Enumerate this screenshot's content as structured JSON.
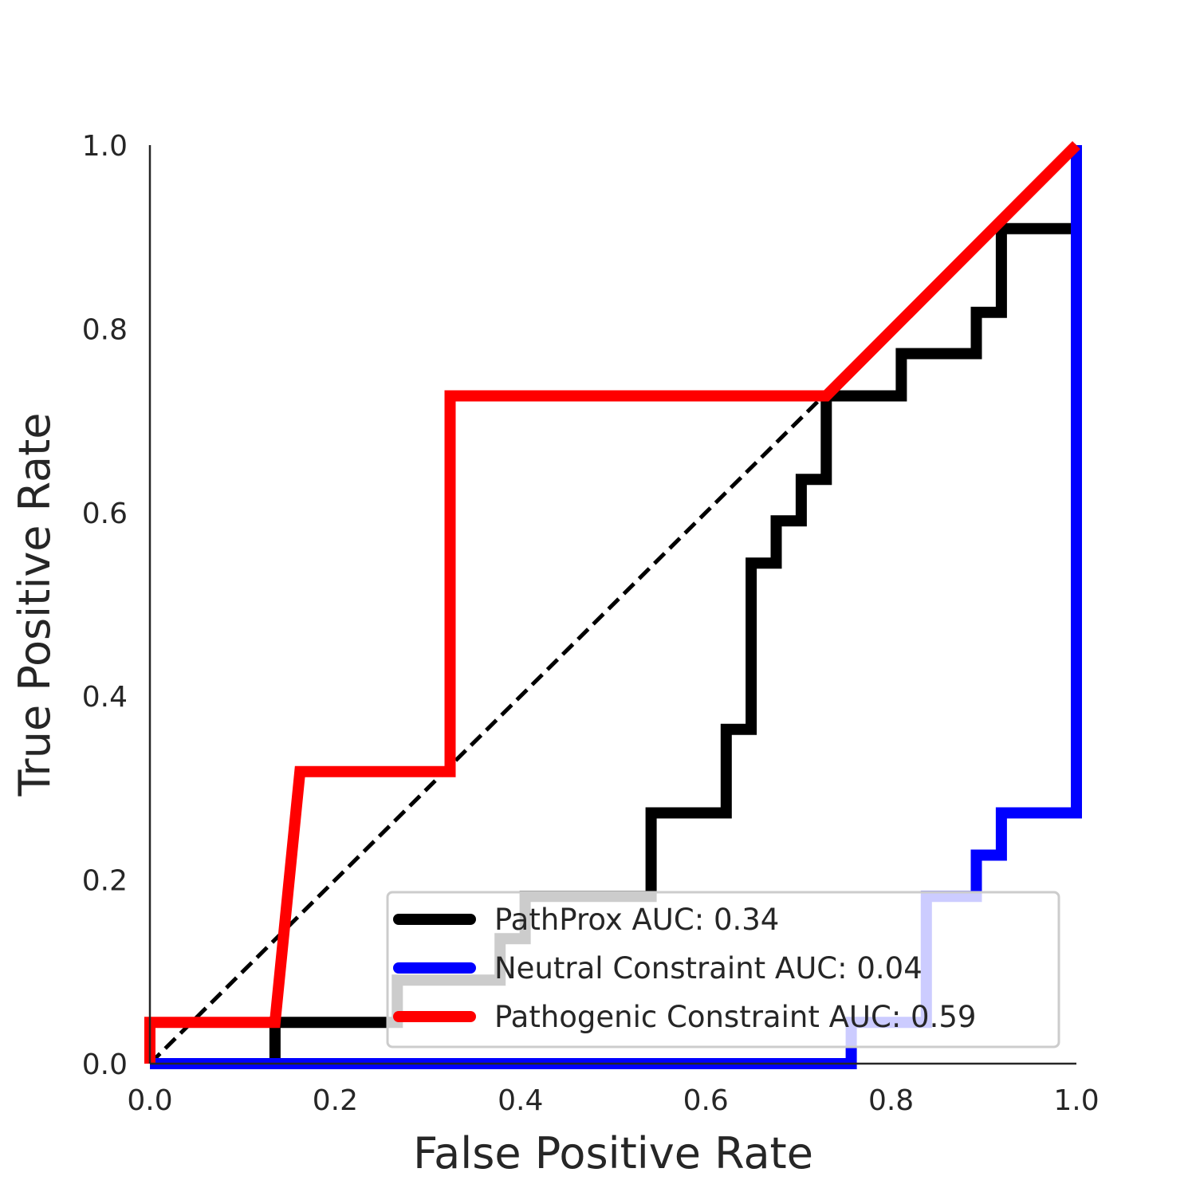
{
  "chart_data": {
    "type": "line",
    "title": "",
    "xlabel": "False Positive Rate",
    "ylabel": "True Positive Rate",
    "xlim": [
      0.0,
      1.0
    ],
    "ylim": [
      0.0,
      1.0
    ],
    "xticks": [
      "0.0",
      "0.2",
      "0.4",
      "0.6",
      "0.8",
      "1.0"
    ],
    "yticks": [
      "0.0",
      "0.2",
      "0.4",
      "0.6",
      "0.8",
      "1.0"
    ],
    "grid": false,
    "legend_position": "lower-right",
    "reference_line": {
      "x": [
        0,
        1
      ],
      "y": [
        0,
        1
      ],
      "color": "#000000",
      "style": "dashed"
    },
    "series": [
      {
        "name": "PathProx AUC:  0.34",
        "color": "#000000",
        "x": [
          0.0,
          0.0,
          0.135,
          0.135,
          0.267,
          0.267,
          0.378,
          0.378,
          0.405,
          0.405,
          0.432,
          0.432,
          0.541,
          0.541,
          0.622,
          0.622,
          0.649,
          0.649,
          0.676,
          0.676,
          0.703,
          0.703,
          0.73,
          0.73,
          0.811,
          0.811,
          0.892,
          0.892,
          0.919,
          0.919,
          1.0
        ],
        "y": [
          0.0,
          0.0,
          0.0,
          0.045,
          0.045,
          0.091,
          0.091,
          0.136,
          0.136,
          0.182,
          0.182,
          0.182,
          0.182,
          0.273,
          0.273,
          0.364,
          0.364,
          0.545,
          0.545,
          0.591,
          0.591,
          0.636,
          0.636,
          0.727,
          0.727,
          0.773,
          0.773,
          0.818,
          0.818,
          0.909,
          0.909
        ]
      },
      {
        "name": "Neutral Constraint AUC:  0.04",
        "color": "#0000ff",
        "x": [
          0.0,
          0.757,
          0.757,
          0.838,
          0.838,
          0.892,
          0.892,
          0.919,
          0.919,
          1.0,
          1.0
        ],
        "y": [
          0.0,
          0.0,
          0.045,
          0.045,
          0.182,
          0.182,
          0.227,
          0.227,
          0.273,
          0.273,
          1.0
        ]
      },
      {
        "name": "Pathogenic Constraint AUC:  0.59",
        "color": "#ff0000",
        "x": [
          0.0,
          0.0,
          0.135,
          0.162,
          0.324,
          0.324,
          0.73,
          1.0
        ],
        "y": [
          0.0,
          0.045,
          0.045,
          0.318,
          0.318,
          0.727,
          0.727,
          1.0
        ]
      }
    ]
  }
}
